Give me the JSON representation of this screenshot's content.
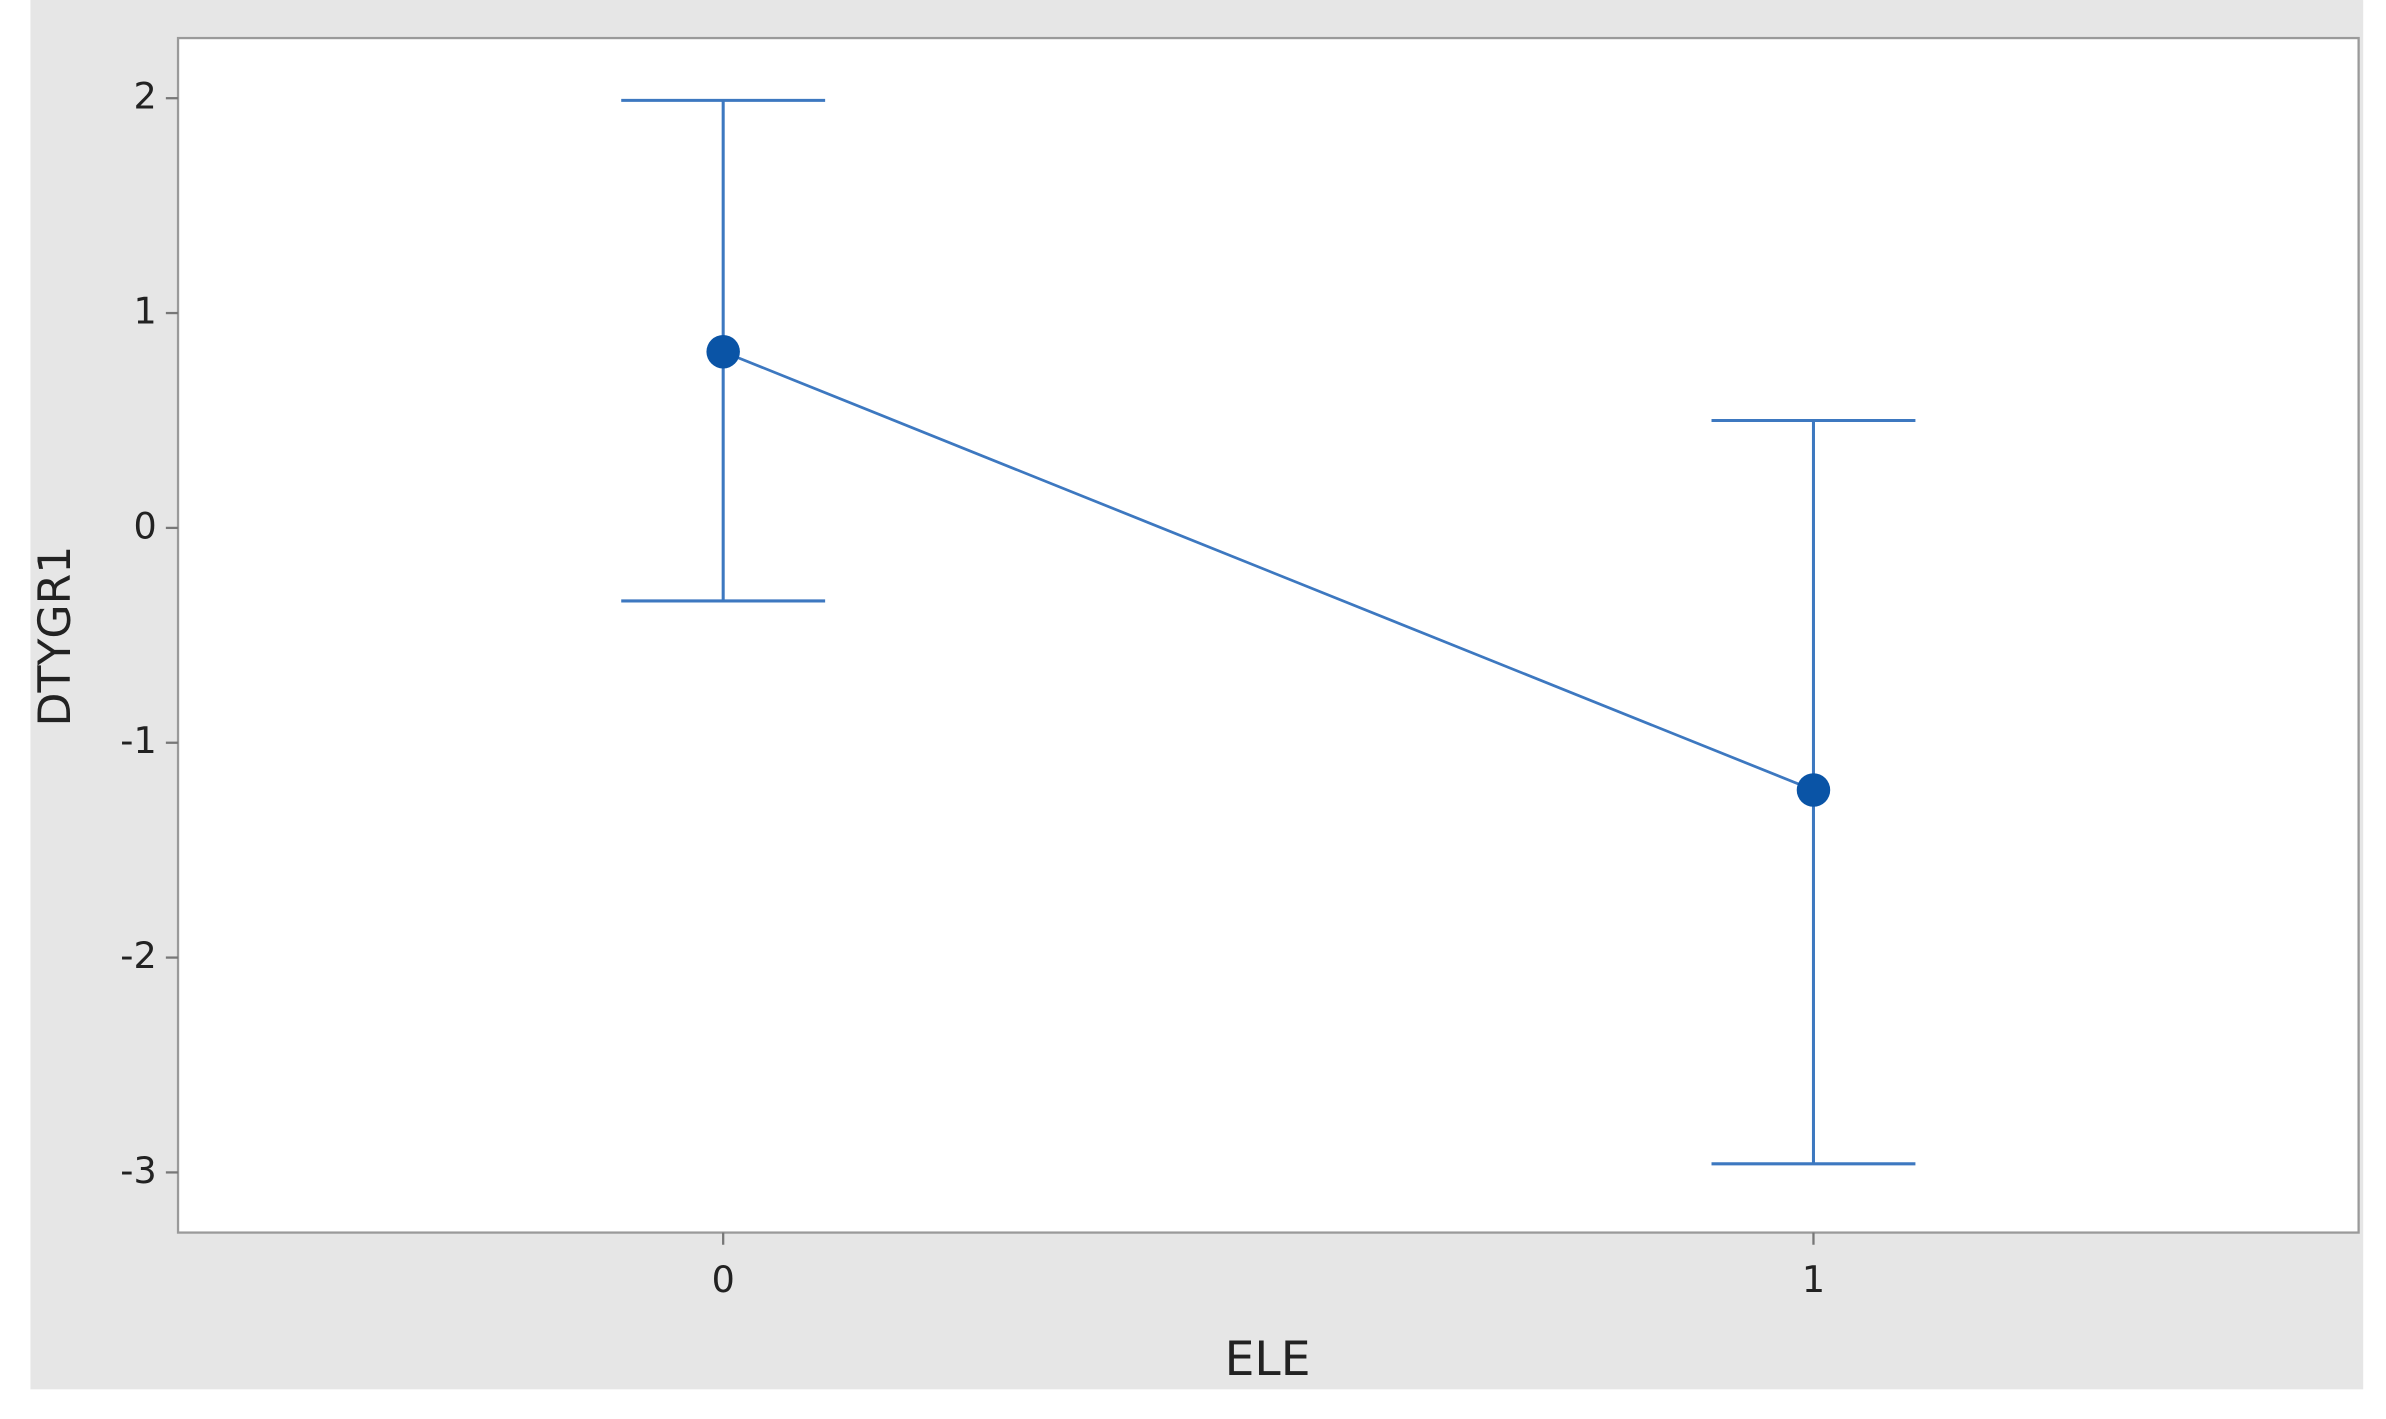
{
  "chart_data": {
    "type": "interval",
    "x_label": "ELE",
    "y_label": "DTYGR1",
    "x": [
      0,
      1
    ],
    "xlim": [
      -0.5,
      1.5
    ],
    "xticks": [
      0,
      1
    ],
    "ylim": [
      -3.28,
      2.28
    ],
    "yticks": [
      -3,
      -2,
      -1,
      0,
      1,
      2
    ],
    "series": [
      {
        "color": "#3d78c0",
        "values": [
          0.82,
          -1.22
        ],
        "upper": [
          1.99,
          0.5
        ],
        "lower": [
          -0.34,
          -2.96
        ]
      }
    ]
  }
}
